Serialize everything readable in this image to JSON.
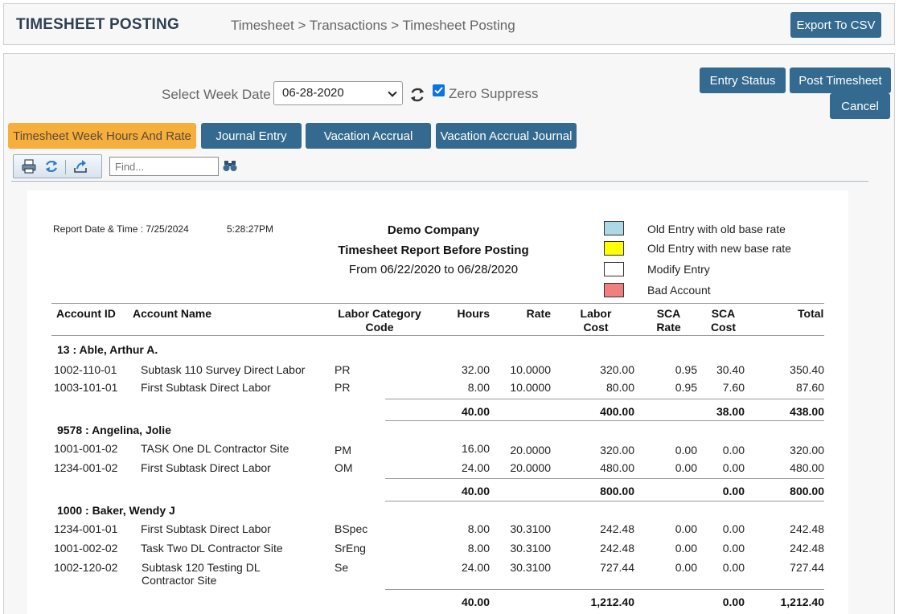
{
  "header": {
    "title": "TIMESHEET POSTING",
    "breadcrumb": "Timesheet > Transactions > Timesheet Posting",
    "export_label": "Export To CSV"
  },
  "controls": {
    "week_label": "Select Week Date",
    "week_value": "06-28-2020",
    "zero_suppress_label": "Zero Suppress",
    "zero_suppress_checked": true,
    "entry_status_label": "Entry Status",
    "post_label": "Post Timesheet",
    "cancel_label": "Cancel"
  },
  "tabs": [
    {
      "label": "Timesheet Week Hours And Rate",
      "active": true
    },
    {
      "label": "Journal Entry",
      "active": false
    },
    {
      "label": "Vacation Accrual",
      "active": false
    },
    {
      "label": "Vacation Accrual Journal",
      "active": false
    }
  ],
  "toolbar": {
    "find_placeholder": "Find...",
    "icons": [
      "print-icon",
      "refresh-icon",
      "export-icon",
      "binoculars-icon"
    ]
  },
  "report": {
    "date_label": "Report Date & Time : 7/25/2024",
    "time": "5:28:27PM",
    "company": "Demo Company",
    "title": "Timesheet Report Before Posting",
    "range": "From 06/22/2020 to 06/28/2020",
    "legend": [
      {
        "color": "#add8e6",
        "label": "Old Entry with old base rate"
      },
      {
        "color": "#ffff00",
        "label": "Old Entry with new base rate"
      },
      {
        "color": "#ffffff",
        "label": "Modify Entry"
      },
      {
        "color": "#f08080",
        "label": "Bad Account"
      }
    ],
    "columns": {
      "account_id": "Account ID",
      "account_name": "Account Name",
      "labor_cat_1": "Labor Category",
      "labor_cat_2": "Code",
      "hours": "Hours",
      "rate": "Rate",
      "labor_1": "Labor",
      "labor_2": "Cost",
      "sca_rate_1": "SCA",
      "sca_rate_2": "Rate",
      "sca_cost_1": "SCA",
      "sca_cost_2": "Cost",
      "total": "Total"
    },
    "employees": [
      {
        "name": "13 : Able, Arthur A.",
        "rows": [
          {
            "id": "1002-110-01",
            "name": "Subtask 110 Survey Direct Labor",
            "code": "PR",
            "hours": "32.00",
            "rate": "10.0000",
            "cost": "320.00",
            "sca_rate": "0.95",
            "sca_cost": "30.40",
            "total": "350.40"
          },
          {
            "id": "1003-101-01",
            "name": "First Subtask Direct Labor",
            "code": "PR",
            "hours": "8.00",
            "rate": "10.0000",
            "cost": "80.00",
            "sca_rate": "0.95",
            "sca_cost": "7.60",
            "total": "87.60"
          }
        ],
        "subtotal": {
          "hours": "40.00",
          "cost": "400.00",
          "sca_cost": "38.00",
          "total": "438.00"
        }
      },
      {
        "name": "9578 : Angelina, Jolie",
        "rows": [
          {
            "id": "1001-001-02",
            "name": "TASK One DL Contractor Site",
            "code": "PM",
            "hours": "16.00",
            "rate": "20.0000",
            "cost": "320.00",
            "sca_rate": "0.00",
            "sca_cost": "0.00",
            "total": "320.00"
          },
          {
            "id": "1234-001-02",
            "name": "First Subtask Direct Labor",
            "code": "OM",
            "hours": "24.00",
            "rate": "20.0000",
            "cost": "480.00",
            "sca_rate": "0.00",
            "sca_cost": "0.00",
            "total": "480.00"
          }
        ],
        "subtotal": {
          "hours": "40.00",
          "cost": "800.00",
          "sca_cost": "0.00",
          "total": "800.00"
        }
      },
      {
        "name": "1000 : Baker, Wendy J",
        "rows": [
          {
            "id": "1234-001-01",
            "name": "First Subtask Direct Labor",
            "code": "BSpec",
            "hours": "8.00",
            "rate": "30.3100",
            "cost": "242.48",
            "sca_rate": "0.00",
            "sca_cost": "0.00",
            "total": "242.48"
          },
          {
            "id": "1001-002-02",
            "name": "Task Two DL Contractor Site",
            "code": "SrEng",
            "hours": "8.00",
            "rate": "30.3100",
            "cost": "242.48",
            "sca_rate": "0.00",
            "sca_cost": "0.00",
            "total": "242.48"
          },
          {
            "id": "1002-120-02",
            "name": "Subtask 120  Testing DL",
            "name2": "Contractor Site",
            "code": "Se",
            "hours": "24.00",
            "rate": "30.3100",
            "cost": "727.44",
            "sca_rate": "0.00",
            "sca_cost": "0.00",
            "total": "727.44"
          }
        ],
        "subtotal": {
          "hours": "40.00",
          "cost": "1,212.40",
          "sca_cost": "0.00",
          "total": "1,212.40"
        }
      }
    ]
  }
}
